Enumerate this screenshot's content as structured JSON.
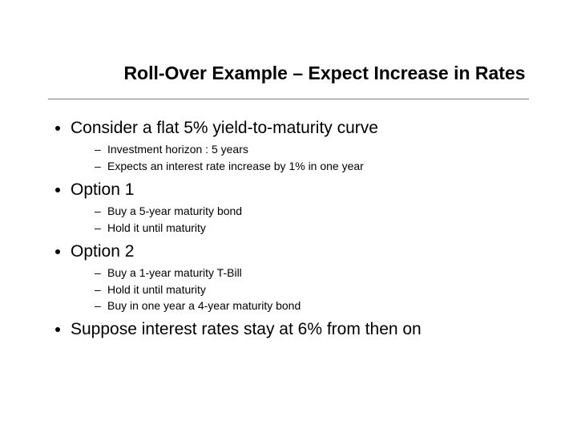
{
  "title": "Roll-Over Example – Expect Increase in Rates",
  "bullets": [
    {
      "text": "Consider a flat 5% yield-to-maturity curve",
      "sub": [
        "Investment horizon : 5 years",
        "Expects an interest rate increase by 1% in one year"
      ]
    },
    {
      "text": "Option 1",
      "sub": [
        "Buy a 5-year maturity bond",
        "Hold it until maturity"
      ]
    },
    {
      "text": "Option 2",
      "sub": [
        "Buy a 1-year maturity T-Bill",
        "Hold it until maturity",
        "Buy in one year a 4-year maturity bond"
      ]
    },
    {
      "text": "Suppose interest rates stay at 6% from then on",
      "sub": []
    }
  ],
  "colors": {
    "background": "#ffffff",
    "text": "#000000",
    "rule": "#000000"
  },
  "fonts": {
    "title_size_pt": 23,
    "bullet_size_pt": 21,
    "sub_size_pt": 14,
    "family": "Arial"
  }
}
